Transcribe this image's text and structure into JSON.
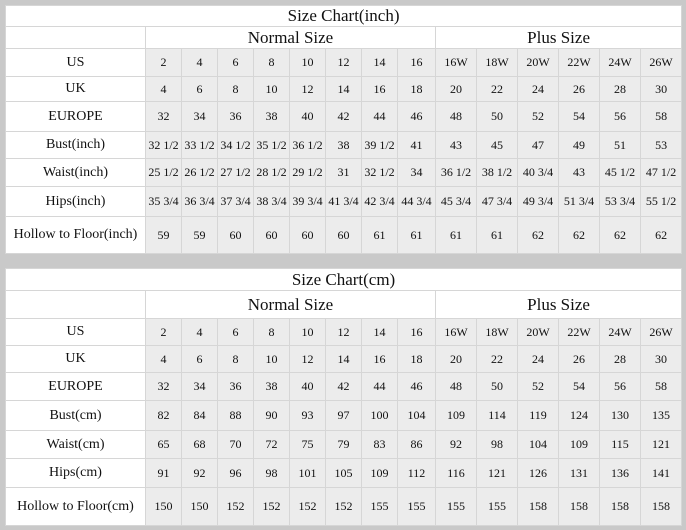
{
  "tables": [
    {
      "title": "Size Chart(inch)",
      "groups": [
        "Normal Size",
        "Plus Size"
      ],
      "rows": [
        {
          "label": "US",
          "values": [
            "2",
            "4",
            "6",
            "8",
            "10",
            "12",
            "14",
            "16",
            "16W",
            "18W",
            "20W",
            "22W",
            "24W",
            "26W"
          ]
        },
        {
          "label": "UK",
          "values": [
            "4",
            "6",
            "8",
            "10",
            "12",
            "14",
            "16",
            "18",
            "20",
            "22",
            "24",
            "26",
            "28",
            "30"
          ]
        },
        {
          "label": "EUROPE",
          "values": [
            "32",
            "34",
            "36",
            "38",
            "40",
            "42",
            "44",
            "46",
            "48",
            "50",
            "52",
            "54",
            "56",
            "58"
          ]
        },
        {
          "label": "Bust(inch)",
          "values": [
            "32 1/2",
            "33 1/2",
            "34 1/2",
            "35 1/2",
            "36 1/2",
            "38",
            "39 1/2",
            "41",
            "43",
            "45",
            "47",
            "49",
            "51",
            "53"
          ]
        },
        {
          "label": "Waist(inch)",
          "values": [
            "25 1/2",
            "26 1/2",
            "27 1/2",
            "28 1/2",
            "29 1/2",
            "31",
            "32 1/2",
            "34",
            "36 1/2",
            "38 1/2",
            "40 3/4",
            "43",
            "45 1/2",
            "47 1/2"
          ]
        },
        {
          "label": "Hips(inch)",
          "values": [
            "35 3/4",
            "36 3/4",
            "37 3/4",
            "38 3/4",
            "39 3/4",
            "41 3/4",
            "42 3/4",
            "44 3/4",
            "45 3/4",
            "47 3/4",
            "49 3/4",
            "51 3/4",
            "53 3/4",
            "55 1/2"
          ]
        },
        {
          "label": "Hollow to Floor(inch)",
          "values": [
            "59",
            "59",
            "60",
            "60",
            "60",
            "60",
            "61",
            "61",
            "61",
            "61",
            "62",
            "62",
            "62",
            "62"
          ]
        }
      ]
    },
    {
      "title": "Size Chart(cm)",
      "groups": [
        "Normal Size",
        "Plus Size"
      ],
      "rows": [
        {
          "label": "US",
          "values": [
            "2",
            "4",
            "6",
            "8",
            "10",
            "12",
            "14",
            "16",
            "16W",
            "18W",
            "20W",
            "22W",
            "24W",
            "26W"
          ]
        },
        {
          "label": "UK",
          "values": [
            "4",
            "6",
            "8",
            "10",
            "12",
            "14",
            "16",
            "18",
            "20",
            "22",
            "24",
            "26",
            "28",
            "30"
          ]
        },
        {
          "label": "EUROPE",
          "values": [
            "32",
            "34",
            "36",
            "38",
            "40",
            "42",
            "44",
            "46",
            "48",
            "50",
            "52",
            "54",
            "56",
            "58"
          ]
        },
        {
          "label": "Bust(cm)",
          "values": [
            "82",
            "84",
            "88",
            "90",
            "93",
            "97",
            "100",
            "104",
            "109",
            "114",
            "119",
            "124",
            "130",
            "135"
          ]
        },
        {
          "label": "Waist(cm)",
          "values": [
            "65",
            "68",
            "70",
            "72",
            "75",
            "79",
            "83",
            "86",
            "92",
            "98",
            "104",
            "109",
            "115",
            "121"
          ]
        },
        {
          "label": "Hips(cm)",
          "values": [
            "91",
            "92",
            "96",
            "98",
            "101",
            "105",
            "109",
            "112",
            "116",
            "121",
            "126",
            "131",
            "136",
            "141"
          ]
        },
        {
          "label": "Hollow to Floor(cm)",
          "values": [
            "150",
            "150",
            "152",
            "152",
            "152",
            "152",
            "155",
            "155",
            "155",
            "155",
            "158",
            "158",
            "158",
            "158"
          ]
        }
      ]
    }
  ]
}
